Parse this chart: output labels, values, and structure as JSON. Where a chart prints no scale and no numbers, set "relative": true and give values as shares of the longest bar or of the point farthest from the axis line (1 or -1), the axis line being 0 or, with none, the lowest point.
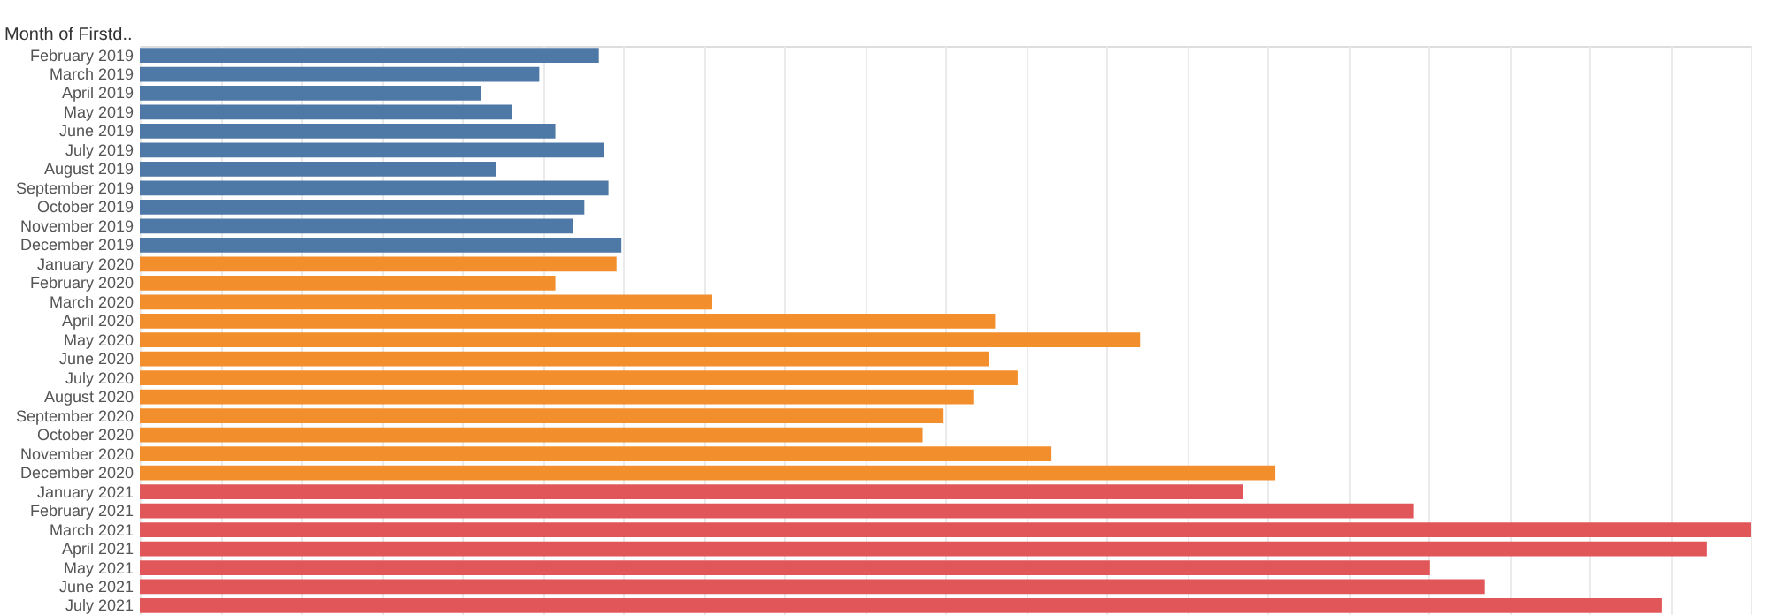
{
  "chart_data": {
    "type": "bar",
    "orientation": "horizontal",
    "relative": true,
    "ylabel": "Month of Firstd..",
    "grid": "x",
    "categories": [
      "February 2019",
      "March 2019",
      "April 2019",
      "May 2019",
      "June 2019",
      "July 2019",
      "August 2019",
      "September 2019",
      "October 2019",
      "November 2019",
      "December 2019",
      "January 2020",
      "February 2020",
      "March 2020",
      "April 2020",
      "May 2020",
      "June 2020",
      "July 2020",
      "August 2020",
      "September 2020",
      "October 2020",
      "November 2020",
      "December 2020",
      "January 2021",
      "February 2021",
      "March 2021",
      "April 2021",
      "May 2021",
      "June 2021",
      "July 2021"
    ],
    "values": [
      0.285,
      0.248,
      0.212,
      0.231,
      0.258,
      0.288,
      0.221,
      0.291,
      0.276,
      0.269,
      0.299,
      0.296,
      0.258,
      0.355,
      0.531,
      0.621,
      0.527,
      0.545,
      0.518,
      0.499,
      0.486,
      0.566,
      0.705,
      0.685,
      0.791,
      1,
      0.973,
      0.801,
      0.835,
      0.945
    ],
    "colors": [
      "#4e79a7",
      "#4e79a7",
      "#4e79a7",
      "#4e79a7",
      "#4e79a7",
      "#4e79a7",
      "#4e79a7",
      "#4e79a7",
      "#4e79a7",
      "#4e79a7",
      "#4e79a7",
      "#f28e2b",
      "#f28e2b",
      "#f28e2b",
      "#f28e2b",
      "#f28e2b",
      "#f28e2b",
      "#f28e2b",
      "#f28e2b",
      "#f28e2b",
      "#f28e2b",
      "#f28e2b",
      "#f28e2b",
      "#e15759",
      "#e15759",
      "#e15759",
      "#e15759",
      "#e15759",
      "#e15759",
      "#e15759"
    ]
  }
}
